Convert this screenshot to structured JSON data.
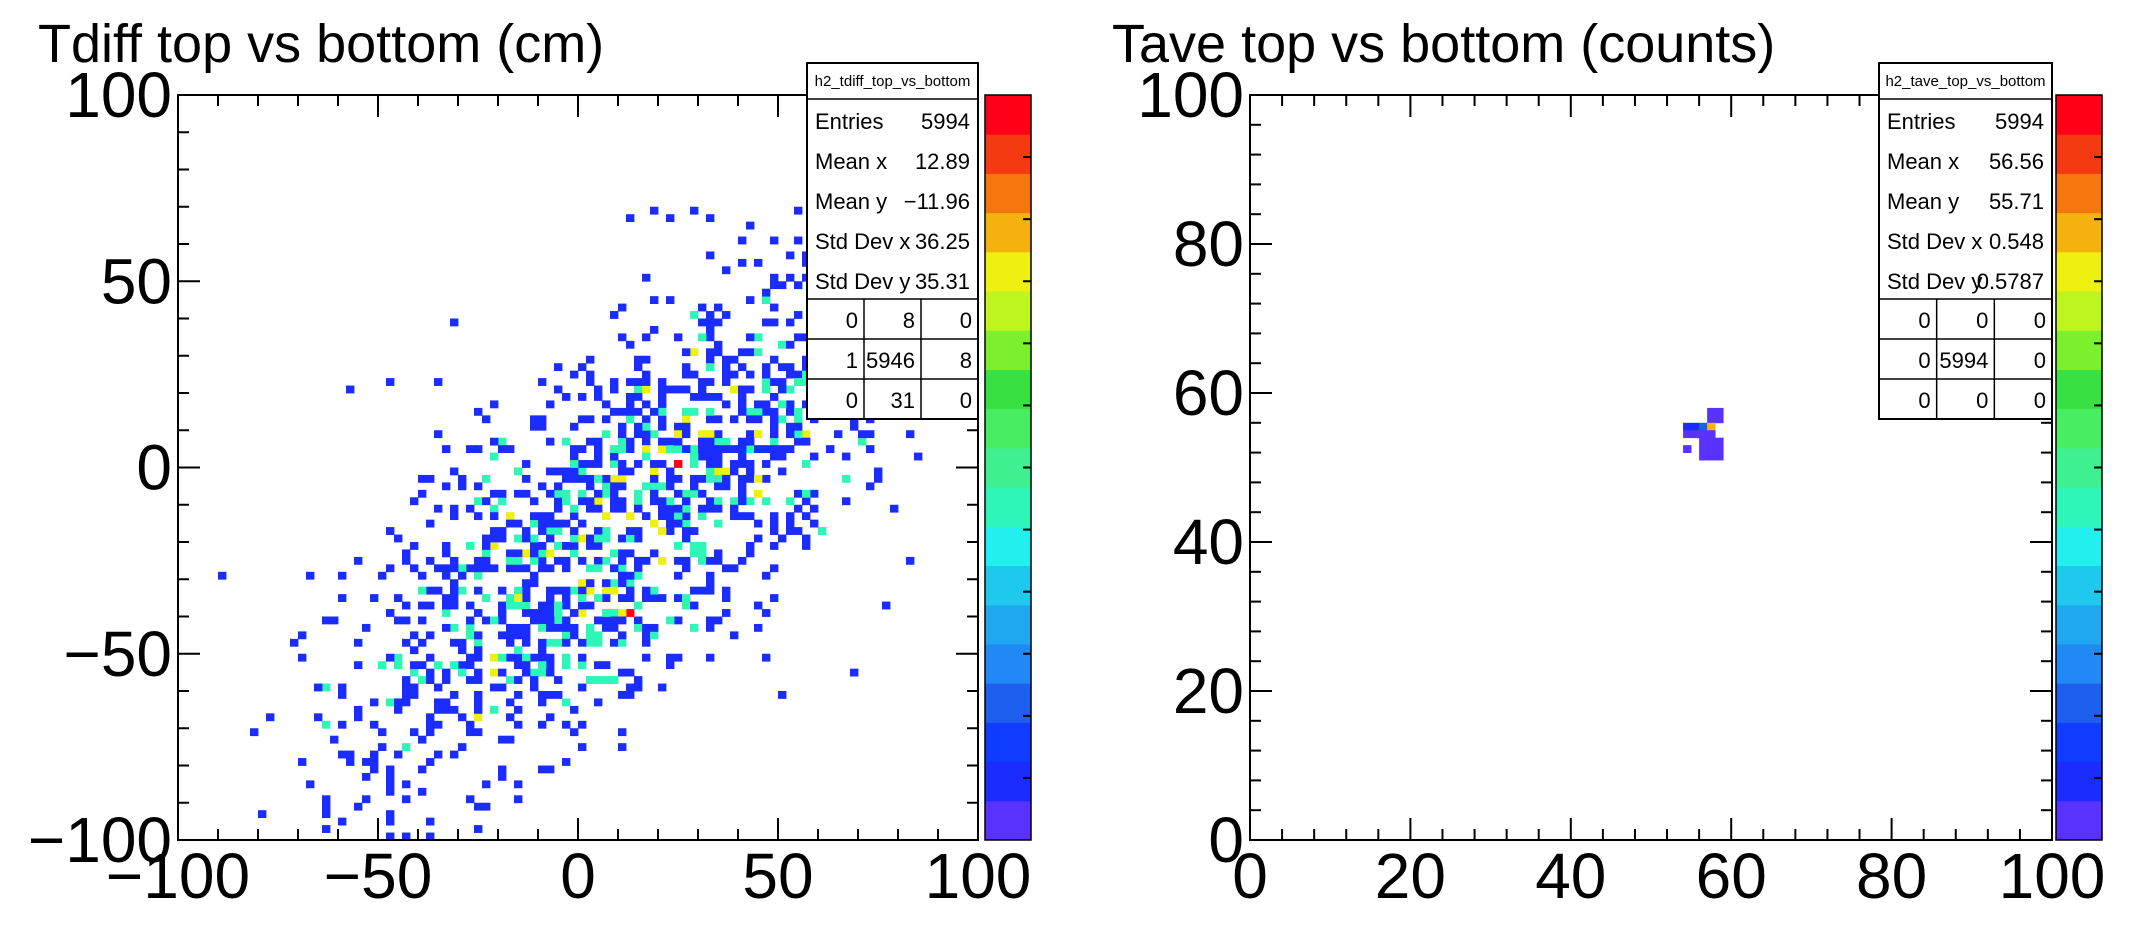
{
  "chart_data": [
    {
      "type": "heatmap",
      "title": "Tdiff top vs bottom (cm)",
      "xlabel": "",
      "ylabel": "",
      "xlim": [
        -100,
        100
      ],
      "ylim": [
        -100,
        100
      ],
      "xticks": [
        "-100",
        "-50",
        "0",
        "50",
        "100"
      ],
      "yticks": [
        "-100",
        "-50",
        "0",
        "50",
        "100"
      ],
      "bin_width": 2,
      "grid": false,
      "colorbar": true,
      "distribution": {
        "type": "correlated",
        "n": 1400,
        "mean_x": 12.89,
        "mean_y": -11.96,
        "std_x": 36.25,
        "std_y": 35.31,
        "correlation": 0.72,
        "seed": 7
      },
      "stats_box": {
        "name": "h2_tdiff_top_vs_bottom",
        "rows": [
          {
            "label": "Entries",
            "value": "5994"
          },
          {
            "label": "Mean x",
            "value": "12.89"
          },
          {
            "label": "Mean y",
            "value": "−11.96"
          },
          {
            "label": "Std Dev x",
            "value": "36.25"
          },
          {
            "label": "Std Dev y",
            "value": "35.31"
          }
        ],
        "grid": [
          [
            "0",
            "8",
            "0"
          ],
          [
            "1",
            "5946",
            "8"
          ],
          [
            "0",
            "31",
            "0"
          ]
        ]
      }
    },
    {
      "type": "heatmap",
      "title": "Tave top vs bottom (counts)",
      "xlabel": "",
      "ylabel": "",
      "xlim": [
        0,
        100
      ],
      "ylim": [
        0,
        100
      ],
      "xticks": [
        "0",
        "20",
        "40",
        "60",
        "80",
        "100"
      ],
      "yticks": [
        "0",
        "20",
        "40",
        "60",
        "80",
        "100"
      ],
      "bin_width": 1,
      "grid": false,
      "colorbar": true,
      "cells": [
        {
          "x": 57,
          "y": 57,
          "level": 0
        },
        {
          "x": 58,
          "y": 57,
          "level": 0
        },
        {
          "x": 57,
          "y": 56,
          "level": 0
        },
        {
          "x": 58,
          "y": 56,
          "level": 0
        },
        {
          "x": 54,
          "y": 55,
          "level": 1
        },
        {
          "x": 55,
          "y": 55,
          "level": 1
        },
        {
          "x": 56,
          "y": 55,
          "level": 3
        },
        {
          "x": 57,
          "y": 55,
          "level": 15
        },
        {
          "x": 54,
          "y": 54,
          "level": 0
        },
        {
          "x": 55,
          "y": 54,
          "level": 0
        },
        {
          "x": 56,
          "y": 54,
          "level": 0
        },
        {
          "x": 57,
          "y": 54,
          "level": 0
        },
        {
          "x": 56,
          "y": 53,
          "level": 0
        },
        {
          "x": 57,
          "y": 53,
          "level": 0
        },
        {
          "x": 58,
          "y": 53,
          "level": 0
        },
        {
          "x": 54,
          "y": 52,
          "level": 0
        },
        {
          "x": 56,
          "y": 52,
          "level": 0
        },
        {
          "x": 57,
          "y": 52,
          "level": 0
        },
        {
          "x": 58,
          "y": 52,
          "level": 0
        },
        {
          "x": 56,
          "y": 51,
          "level": 0
        },
        {
          "x": 57,
          "y": 51,
          "level": 0
        },
        {
          "x": 58,
          "y": 51,
          "level": 0
        }
      ],
      "stats_box": {
        "name": "h2_tave_top_vs_bottom",
        "rows": [
          {
            "label": "Entries",
            "value": "5994"
          },
          {
            "label": "Mean x",
            "value": "56.56"
          },
          {
            "label": "Mean y",
            "value": "55.71"
          },
          {
            "label": "Std Dev x",
            "value": "0.548"
          },
          {
            "label": "Std Dev y",
            "value": "0.5787"
          }
        ],
        "grid": [
          [
            "0",
            "0",
            "0"
          ],
          [
            "0",
            "5994",
            "0"
          ],
          [
            "0",
            "0",
            "0"
          ]
        ]
      }
    }
  ],
  "palette": [
    "#5a32ff",
    "#1a2cff",
    "#0f3cff",
    "#1f5ff0",
    "#2089f3",
    "#1fa8ef",
    "#1fc9ee",
    "#22f0f0",
    "#2ef5b8",
    "#3ff090",
    "#48ee62",
    "#39e042",
    "#7cf02c",
    "#bff51f",
    "#eef10f",
    "#f5b20f",
    "#f5780f",
    "#f53a12",
    "#ff0018"
  ]
}
